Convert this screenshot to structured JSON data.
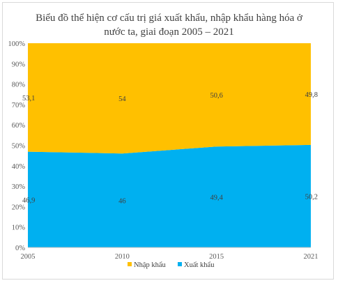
{
  "chart_data": {
    "type": "area",
    "title_line1": "Biểu đồ thể hiện cơ cấu trị giá xuất khẩu, nhập khẩu hàng hóa ở",
    "title_line2": "nước ta, giai đoạn 2005 – 2021",
    "categories": [
      "2005",
      "2010",
      "2015",
      "2021"
    ],
    "stacked": true,
    "series": [
      {
        "name": "Xuất khẩu",
        "values": [
          46.9,
          46,
          49.4,
          50.2
        ],
        "labels": [
          "46,9",
          "46",
          "49,4",
          "50,2"
        ],
        "color": "#00b0f0"
      },
      {
        "name": "Nhập khẩu",
        "values": [
          53.1,
          54,
          50.6,
          49.8
        ],
        "labels": [
          "53,1",
          "54",
          "50,6",
          "49,8"
        ],
        "color": "#ffc000"
      }
    ],
    "ylim": [
      0,
      100
    ],
    "yticks": [
      "0%",
      "10%",
      "20%",
      "30%",
      "40%",
      "50%",
      "60%",
      "70%",
      "80%",
      "90%",
      "100%"
    ],
    "grid": false,
    "legend_position": "bottom"
  }
}
